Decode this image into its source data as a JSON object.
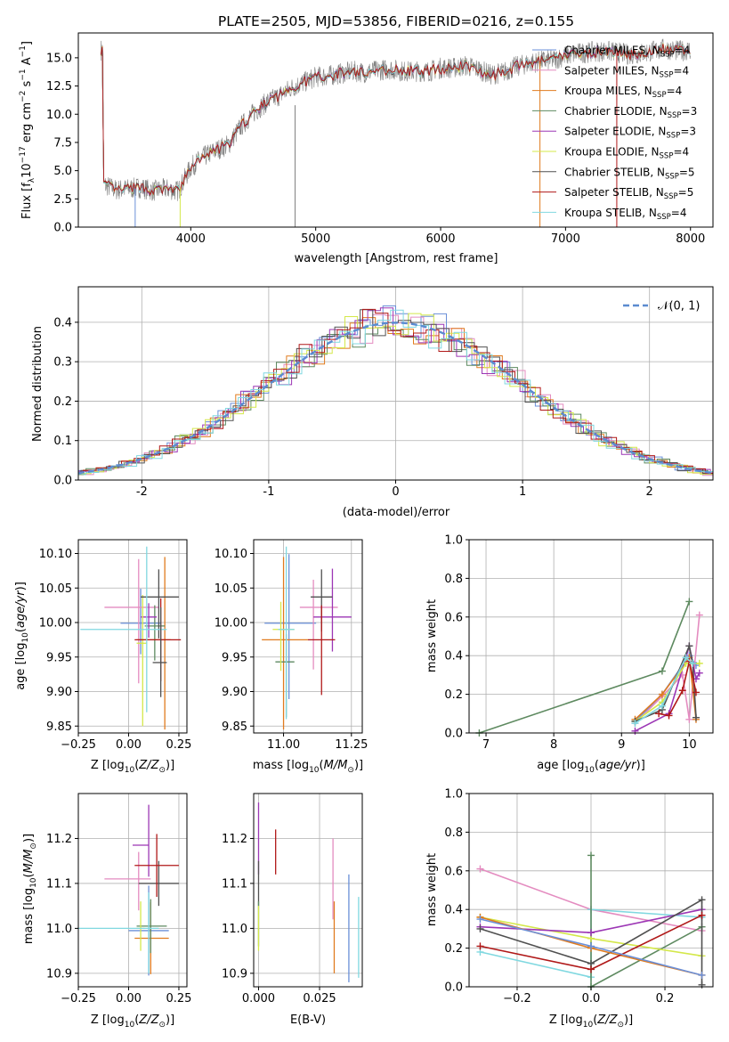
{
  "chart_data": [
    {
      "id": "spectrum",
      "type": "line",
      "title": "PLATE=2505, MJD=53856, FIBERID=0216, z=0.155",
      "xlabel": "wavelength [Angstrom, rest frame]",
      "ylabel": "Flux [fλ10⁻¹⁷ erg cm⁻² s⁻¹ A⁻¹]",
      "xlim": [
        3100,
        8180
      ],
      "ylim": [
        0,
        17.2
      ],
      "xticks": [
        4000,
        5000,
        6000,
        7000,
        8000
      ],
      "yticks": [
        0.0,
        2.5,
        5.0,
        7.5,
        10.0,
        12.5,
        15.0
      ],
      "legend_position": "right",
      "grid": false,
      "series": [
        {
          "name": "Chabrier MILES, N$_{SSP}$=4",
          "label_html": "Chabrier MILES, N<sub>SSP</sub>=4",
          "color": "#6a8fd8"
        },
        {
          "name": "Salpeter MILES, N$_{SSP}$=4",
          "label_html": "Salpeter MILES, N<sub>SSP</sub>=4",
          "color": "#e48cc0"
        },
        {
          "name": "Kroupa MILES, N$_{SSP}$=4",
          "label_html": "Kroupa MILES, N<sub>SSP</sub>=4",
          "color": "#e07b1f"
        },
        {
          "name": "Chabrier ELODIE, N$_{SSP}$=3",
          "label_html": "Chabrier ELODIE, N<sub>SSP</sub>=3",
          "color": "#5e8a60"
        },
        {
          "name": "Salpeter ELODIE, N$_{SSP}$=3",
          "label_html": "Salpeter ELODIE, N<sub>SSP</sub>=3",
          "color": "#9c36b5"
        },
        {
          "name": "Kroupa ELODIE, N$_{SSP}$=4",
          "label_html": "Kroupa ELODIE, N<sub>SSP</sub>=4",
          "color": "#d4e84a"
        },
        {
          "name": "Chabrier STELIB, N$_{SSP}$=5",
          "label_html": "Chabrier STELIB, N<sub>SSP</sub>=5",
          "color": "#505050"
        },
        {
          "name": "Salpeter STELIB, N$_{SSP}$=5",
          "label_html": "Salpeter STELIB, N<sub>SSP</sub>=5",
          "color": "#b01818"
        },
        {
          "name": "Kroupa STELIB, N$_{SSP}$=4",
          "label_html": "Kroupa STELIB, N<sub>SSP</sub>=4",
          "color": "#80d8e0"
        }
      ],
      "data_color": "#808080",
      "continuum": {
        "x": [
          3300,
          3400,
          3500,
          3600,
          3700,
          3800,
          3900,
          4000,
          4100,
          4200,
          4300,
          4400,
          4500,
          4600,
          4700,
          4800,
          4900,
          5000,
          5100,
          5200,
          5300,
          5400,
          5500,
          5600,
          5700,
          5800,
          5900,
          6000,
          6100,
          6200,
          6300,
          6400,
          6500,
          6600,
          6700,
          6800,
          6900,
          7000,
          7100,
          7200,
          7300,
          7400,
          7500,
          7600,
          7700,
          7800,
          7900,
          8000
        ],
        "y": [
          3.8,
          3.3,
          3.4,
          3.5,
          3.2,
          3.4,
          3.2,
          5.3,
          6.2,
          6.8,
          7.3,
          8.9,
          10.1,
          11.0,
          11.6,
          12.3,
          12.8,
          13.3,
          13.4,
          13.6,
          13.8,
          13.7,
          13.9,
          14.0,
          13.8,
          13.8,
          13.8,
          14.1,
          14.1,
          14.3,
          14.0,
          13.5,
          13.7,
          14.2,
          14.5,
          14.7,
          14.8,
          15.2,
          15.4,
          15.5,
          15.6,
          15.5,
          15.3,
          15.4,
          15.6,
          15.8,
          15.6,
          15.7
        ]
      }
    },
    {
      "id": "residuals",
      "type": "histogram",
      "xlabel": "(data-model)/error",
      "ylabel": "Normed distribution",
      "xlim": [
        -2.5,
        2.5
      ],
      "ylim": [
        0,
        0.49
      ],
      "xticks": [
        -2,
        -1,
        0,
        1,
        2
      ],
      "yticks": [
        0.0,
        0.1,
        0.2,
        0.3,
        0.4
      ],
      "grid": true,
      "legend": "$\\mathcal{N}(0,1)$",
      "legend_position": "top-right",
      "reference_curve_color": "#5b8bd0"
    },
    {
      "id": "age-vs-Z",
      "type": "errorbar",
      "xlabel": "Z [log$_{10}$(Z/Z$_\\odot$)]",
      "ylabel": "age  [log$_{10}$(age/yr)]",
      "xlim": [
        -0.25,
        0.29
      ],
      "ylim": [
        9.84,
        10.12
      ],
      "xticks": [
        -0.25,
        0.0,
        0.25
      ],
      "xticklabels": [
        "−0.25",
        "0.00",
        "0.25"
      ],
      "yticks": [
        9.85,
        9.9,
        9.95,
        10.0,
        10.05,
        10.1
      ],
      "yticklabels": [
        "9.85",
        "9.90",
        "9.95",
        "10.00",
        "10.05",
        "10.10"
      ],
      "grid": true,
      "points": [
        {
          "series": 0,
          "x": 0.06,
          "xerr": [
            0.1,
            0.1
          ],
          "y": 9.999,
          "yerr": [
            0.045,
            0.05
          ]
        },
        {
          "series": 1,
          "x": 0.05,
          "xerr": [
            0.17,
            0.1
          ],
          "y": 10.022,
          "yerr": [
            0.11,
            0.07
          ]
        },
        {
          "series": 2,
          "x": 0.18,
          "xerr": [
            0.14,
            0.03
          ],
          "y": 9.975,
          "yerr": [
            0.13,
            0.12
          ]
        },
        {
          "series": 3,
          "x": 0.13,
          "xerr": [
            0.05,
            0.05
          ],
          "y": 9.995,
          "yerr": [
            0.05,
            0.03
          ]
        },
        {
          "series": 4,
          "x": 0.1,
          "xerr": [
            0.04,
            0.04
          ],
          "y": 10.008,
          "yerr": [
            0.03,
            0.02
          ]
        },
        {
          "series": 5,
          "x": 0.07,
          "xerr": [
            0.03,
            0.02
          ],
          "y": 9.97,
          "yerr": [
            0.12,
            0.07
          ]
        },
        {
          "series": 6,
          "x": 0.15,
          "xerr": [
            0.09,
            0.1
          ],
          "y": 10.037,
          "yerr": [
            0.06,
            0.04
          ]
        },
        {
          "series": 7,
          "x": 0.16,
          "xerr": [
            0.13,
            0.1
          ],
          "y": 9.975,
          "yerr": [
            0.06,
            0.06
          ]
        },
        {
          "series": 8,
          "x": 0.09,
          "xerr": [
            0.33,
            0.1
          ],
          "y": 9.99,
          "yerr": [
            0.12,
            0.12
          ]
        },
        {
          "series": 6,
          "x": 0.16,
          "xerr": [
            0.04,
            0.03
          ],
          "y": 9.942,
          "yerr": [
            0.05,
            0.08
          ]
        }
      ]
    },
    {
      "id": "age-vs-mass",
      "type": "errorbar",
      "xlabel": "mass [log$_{10}$(M/M$_\\odot$)]",
      "xlim": [
        10.89,
        11.29
      ],
      "ylim": [
        9.84,
        10.12
      ],
      "xticks": [
        11.0,
        11.25
      ],
      "xticklabels": [
        "11.00",
        "11.25"
      ],
      "yticks": [
        9.85,
        9.9,
        9.95,
        10.0,
        10.05,
        10.1
      ],
      "yticklabels": [
        "9.85",
        "9.90",
        "9.95",
        "10.00",
        "10.05",
        "10.10"
      ],
      "grid": true,
      "points": [
        {
          "series": 0,
          "x": 11.02,
          "xerr": [
            0.09,
            0.1
          ],
          "y": 9.999,
          "yerr": [
            0.11,
            0.1
          ]
        },
        {
          "series": 1,
          "x": 11.11,
          "xerr": [
            0.05,
            0.09
          ],
          "y": 10.022,
          "yerr": [
            0.09,
            0.04
          ]
        },
        {
          "series": 2,
          "x": 11.0,
          "xerr": [
            0.08,
            0.09
          ],
          "y": 9.975,
          "yerr": [
            0.13,
            0.12
          ]
        },
        {
          "series": 3,
          "x": 11.01,
          "xerr": [
            0.04,
            0.03
          ],
          "y": 9.943,
          "yerr": [
            0.08,
            0.04
          ]
        },
        {
          "series": 4,
          "x": 11.18,
          "xerr": [
            0.07,
            0.07
          ],
          "y": 10.008,
          "yerr": [
            0.05,
            0.07
          ]
        },
        {
          "series": 5,
          "x": 10.99,
          "xerr": [
            0.03,
            0.05
          ],
          "y": 9.99,
          "yerr": [
            0.06,
            0.04
          ]
        },
        {
          "series": 6,
          "x": 11.14,
          "xerr": [
            0.04,
            0.04
          ],
          "y": 10.037,
          "yerr": [
            0.05,
            0.04
          ]
        },
        {
          "series": 7,
          "x": 11.14,
          "xerr": [
            0.05,
            0.05
          ],
          "y": 9.975,
          "yerr": [
            0.08,
            0.05
          ]
        },
        {
          "series": 8,
          "x": 11.01,
          "xerr": [
            0.03,
            0.03
          ],
          "y": 9.99,
          "yerr": [
            0.13,
            0.12
          ]
        }
      ]
    },
    {
      "id": "mass-weight-vs-age",
      "type": "line",
      "xlabel": "age  [log$_{10}$(age/yr)]",
      "ylabel": "mass weight",
      "xlim": [
        6.75,
        10.35
      ],
      "ylim": [
        0,
        1
      ],
      "xticks": [
        7,
        8,
        9,
        10
      ],
      "yticks": [
        0.0,
        0.2,
        0.4,
        0.6,
        0.8,
        1.0
      ],
      "grid": true,
      "series": [
        {
          "series": 3,
          "x": [
            6.9,
            9.6,
            10.0
          ],
          "y": [
            0.0,
            0.32,
            0.68
          ]
        },
        {
          "series": 0,
          "x": [
            9.2,
            9.6,
            10.0,
            10.1
          ],
          "y": [
            0.06,
            0.2,
            0.4,
            0.35
          ]
        },
        {
          "series": 1,
          "x": [
            9.2,
            9.6,
            9.9,
            10.0,
            10.15
          ],
          "y": [
            0.05,
            0.19,
            0.3,
            0.07,
            0.61
          ]
        },
        {
          "series": 2,
          "x": [
            9.2,
            9.6,
            10.0,
            10.1
          ],
          "y": [
            0.07,
            0.2,
            0.39,
            0.07
          ]
        },
        {
          "series": 4,
          "x": [
            9.2,
            9.7,
            10.0,
            10.1,
            10.15
          ],
          "y": [
            0.01,
            0.1,
            0.45,
            0.28,
            0.31
          ]
        },
        {
          "series": 5,
          "x": [
            9.2,
            9.6,
            9.95,
            10.15
          ],
          "y": [
            0.06,
            0.16,
            0.36,
            0.36
          ]
        },
        {
          "series": 6,
          "x": [
            9.2,
            9.6,
            10.0,
            10.05,
            10.1
          ],
          "y": [
            0.06,
            0.12,
            0.45,
            0.36,
            0.08
          ]
        },
        {
          "series": 7,
          "x": [
            9.55,
            9.7,
            9.9,
            10.0,
            10.1
          ],
          "y": [
            0.1,
            0.09,
            0.22,
            0.37,
            0.21
          ]
        },
        {
          "series": 8,
          "x": [
            9.2,
            9.6,
            9.95,
            10.05
          ],
          "y": [
            0.05,
            0.14,
            0.39,
            0.36
          ]
        }
      ]
    },
    {
      "id": "mass-vs-Z",
      "type": "errorbar",
      "xlabel": "Z [log$_{10}$(Z/Z$_\\odot$)]",
      "ylabel": "mass [log$_{10}$(M/M$_\\odot$)]",
      "xlim": [
        -0.25,
        0.29
      ],
      "ylim": [
        10.87,
        11.3
      ],
      "xticks": [
        -0.25,
        0.0,
        0.25
      ],
      "xticklabels": [
        "−0.25",
        "0.00",
        "0.25"
      ],
      "yticks": [
        10.9,
        11.0,
        11.1,
        11.2
      ],
      "yticklabels": [
        "10.9",
        "11.0",
        "11.1",
        "11.2"
      ],
      "grid": true,
      "points": [
        {
          "series": 0,
          "x": 0.1,
          "xerr": [
            0.1,
            0.1
          ],
          "y": 10.995,
          "yerr": [
            0.1,
            0.1
          ]
        },
        {
          "series": 1,
          "x": 0.05,
          "xerr": [
            0.17,
            0.06
          ],
          "y": 11.11,
          "yerr": [
            0.07,
            0.06
          ]
        },
        {
          "series": 2,
          "x": 0.11,
          "xerr": [
            0.08,
            0.09
          ],
          "y": 10.978,
          "yerr": [
            0.08,
            0.08
          ]
        },
        {
          "series": 3,
          "x": 0.11,
          "xerr": [
            0.07,
            0.08
          ],
          "y": 11.005,
          "yerr": [
            0.06,
            0.06
          ]
        },
        {
          "series": 4,
          "x": 0.1,
          "xerr": [
            0.08,
            0.0
          ],
          "y": 11.185,
          "yerr": [
            0.07,
            0.09
          ]
        },
        {
          "series": 5,
          "x": 0.06,
          "xerr": [
            0.02,
            0.02
          ],
          "y": 11.0,
          "yerr": [
            0.05,
            0.06
          ]
        },
        {
          "series": 6,
          "x": 0.15,
          "xerr": [
            0.1,
            0.1
          ],
          "y": 11.1,
          "yerr": [
            0.05,
            0.05
          ]
        },
        {
          "series": 7,
          "x": 0.14,
          "xerr": [
            0.11,
            0.11
          ],
          "y": 11.14,
          "yerr": [
            0.07,
            0.07
          ]
        },
        {
          "series": 8,
          "x": 0.1,
          "xerr": [
            0.35,
            0.05
          ],
          "y": 11.0,
          "yerr": [
            0.1,
            0.08
          ]
        }
      ]
    },
    {
      "id": "mass-vs-ebv",
      "type": "errorbar",
      "xlabel": "E(B-V)",
      "xlim": [
        -0.002,
        0.0425
      ],
      "ylim": [
        10.87,
        11.3
      ],
      "xticks": [
        0.0,
        0.025
      ],
      "xticklabels": [
        "0.000",
        "0.025"
      ],
      "yticks": [
        10.9,
        11.0,
        11.1,
        11.2
      ],
      "yticklabels": [
        "10.9",
        "11.0",
        "11.1",
        "11.2"
      ],
      "grid": true,
      "points": [
        {
          "series": 4,
          "x": 0.0,
          "y": 11.2,
          "yerr": [
            0.08,
            0.08
          ]
        },
        {
          "series": 6,
          "x": 0.0,
          "y": 11.1,
          "yerr": [
            0.05,
            0.05
          ]
        },
        {
          "series": 3,
          "x": 0.0,
          "y": 11.01,
          "yerr": [
            0.05,
            0.05
          ]
        },
        {
          "series": 5,
          "x": 0.0,
          "y": 11.0,
          "yerr": [
            0.05,
            0.05
          ]
        },
        {
          "series": 7,
          "x": 0.007,
          "y": 11.17,
          "yerr": [
            0.05,
            0.05
          ]
        },
        {
          "series": 1,
          "x": 0.0305,
          "y": 11.11,
          "yerr": [
            0.09,
            0.09
          ]
        },
        {
          "series": 2,
          "x": 0.031,
          "y": 10.98,
          "yerr": [
            0.08,
            0.08
          ]
        },
        {
          "series": 0,
          "x": 0.037,
          "y": 11.0,
          "yerr": [
            0.12,
            0.12
          ]
        },
        {
          "series": 8,
          "x": 0.041,
          "y": 10.98,
          "yerr": [
            0.09,
            0.09
          ]
        }
      ]
    },
    {
      "id": "mass-weight-vs-Z",
      "type": "line",
      "xlabel": "Z [log$_{10}$(Z/Z$_\\odot$)]",
      "ylabel": "mass weight",
      "xlim": [
        -0.33,
        0.33
      ],
      "ylim": [
        0,
        1
      ],
      "xticks": [
        -0.2,
        0.0,
        0.2
      ],
      "xticklabels": [
        "−0.2",
        "0.0",
        "0.2"
      ],
      "yticks": [
        0.0,
        0.2,
        0.4,
        0.6,
        0.8,
        1.0
      ],
      "grid": true,
      "series": [
        {
          "series": 1,
          "x": [
            -0.3,
            0.0,
            0.3
          ],
          "y": [
            0.61,
            0.4,
            0.29
          ]
        },
        {
          "series": 8,
          "x": [
            -0.3,
            0.0,
            0.0,
            0.3
          ],
          "y": [
            0.18,
            0.05,
            0.4,
            0.36
          ]
        },
        {
          "series": 3,
          "x": [
            0.0,
            0.0,
            0.3
          ],
          "y": [
            0.68,
            0.0,
            0.31
          ]
        },
        {
          "series": 5,
          "x": [
            -0.3,
            0.0,
            0.3
          ],
          "y": [
            0.36,
            0.25,
            0.16
          ]
        },
        {
          "series": 4,
          "x": [
            -0.3,
            0.0,
            0.3
          ],
          "y": [
            0.31,
            0.28,
            0.4
          ]
        },
        {
          "series": 6,
          "x": [
            -0.3,
            0.0,
            0.3,
            0.3
          ],
          "y": [
            0.3,
            0.12,
            0.45,
            0.01
          ]
        },
        {
          "series": 2,
          "x": [
            -0.3,
            0.0,
            0.3
          ],
          "y": [
            0.36,
            0.2,
            0.06
          ]
        },
        {
          "series": 7,
          "x": [
            -0.3,
            0.0,
            0.3
          ],
          "y": [
            0.21,
            0.09,
            0.37
          ]
        },
        {
          "series": 0,
          "x": [
            -0.3,
            0.0,
            0.3
          ],
          "y": [
            0.35,
            0.21,
            0.06
          ]
        }
      ]
    }
  ]
}
